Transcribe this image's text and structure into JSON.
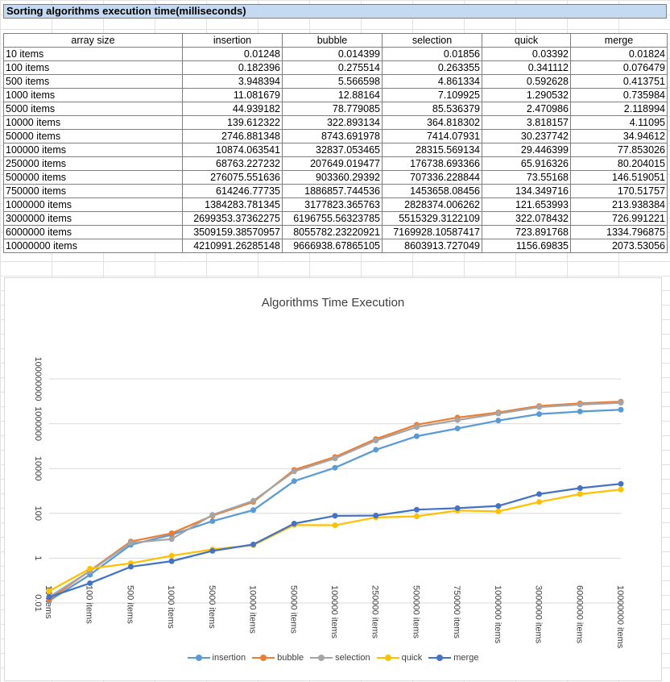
{
  "sheet": {
    "title": "Sorting algorithms execution time(milliseconds)"
  },
  "table": {
    "headers": [
      "array size",
      "insertion",
      "bubble",
      "selection",
      "quick",
      "merge"
    ],
    "rows": [
      [
        "10 items",
        "0.01248",
        "0.014399",
        "0.01856",
        "0.03392",
        "0.01824"
      ],
      [
        "100 items",
        "0.182396",
        "0.275514",
        "0.263355",
        "0.341112",
        "0.076479"
      ],
      [
        "500 items",
        "3.948394",
        "5.566598",
        "4.861334",
        "0.592628",
        "0.413751"
      ],
      [
        "1000 items",
        "11.081679",
        "12.88164",
        "7.109925",
        "1.290532",
        "0.735984"
      ],
      [
        "5000 items",
        "44.939182",
        "78.779085",
        "85.536379",
        "2.470986",
        "2.118994"
      ],
      [
        "10000 items",
        "139.612322",
        "322.893134",
        "364.818302",
        "3.818157",
        "4.11095"
      ],
      [
        "50000 items",
        "2746.881348",
        "8743.691978",
        "7414.07931",
        "30.237742",
        "34.94612"
      ],
      [
        "100000 items",
        "10874.063541",
        "32837.053465",
        "28315.569134",
        "29.446399",
        "77.853026"
      ],
      [
        "250000 items",
        "68763.227232",
        "207649.019477",
        "176738.693366",
        "65.916326",
        "80.204015"
      ],
      [
        "500000 items",
        "276075.551636",
        "903360.29392",
        "707336.228844",
        "73.55168",
        "146.519051"
      ],
      [
        "750000 items",
        "614246.77735",
        "1886857.744536",
        "1453658.08456",
        "134.349716",
        "170.51757"
      ],
      [
        "1000000 items",
        "1384283.781345",
        "3177823.365763",
        "2828374.006262",
        "121.653993",
        "213.938384"
      ],
      [
        "3000000 items",
        "2699353.37362275",
        "6196755.56323785",
        "5515329.3122109",
        "322.078432",
        "726.991221"
      ],
      [
        "6000000 items",
        "3509159.38570957",
        "8055782.23220921",
        "7169928.10587417",
        "723.891768",
        "1334.796875"
      ],
      [
        "10000000 items",
        "4210991.26285148",
        "9666938.67865105",
        "8603913.727049",
        "1156.69835",
        "2073.53056"
      ]
    ]
  },
  "chart_data": {
    "type": "line",
    "title": "Algorithms Time Execution",
    "xlabel": "",
    "ylabel": "",
    "y_scale": "log",
    "ylim": [
      0.01,
      100000000
    ],
    "y_ticks": [
      "0.01",
      "1",
      "100",
      "10000",
      "1000000",
      "100000000"
    ],
    "grid": true,
    "legend": "bottom",
    "categories": [
      "10 items",
      "100 items",
      "500 items",
      "1000 items",
      "5000 items",
      "10000 items",
      "50000 items",
      "100000 items",
      "250000 items",
      "500000 items",
      "750000 items",
      "1000000 items",
      "3000000 items",
      "6000000 items",
      "10000000 items"
    ],
    "series": [
      {
        "name": "insertion",
        "color": "#5b9bd5",
        "values": [
          0.01248,
          0.182396,
          3.948394,
          11.081679,
          44.939182,
          139.612322,
          2746.881348,
          10874.063541,
          68763.227232,
          276075.551636,
          614246.77735,
          1384283.781345,
          2699353.37362275,
          3509159.38570957,
          4210991.26285148
        ]
      },
      {
        "name": "bubble",
        "color": "#ed7d31",
        "values": [
          0.014399,
          0.275514,
          5.566598,
          12.88164,
          78.779085,
          322.893134,
          8743.691978,
          32837.053465,
          207649.019477,
          903360.29392,
          1886857.744536,
          3177823.365763,
          6196755.56323785,
          8055782.23220921,
          9666938.67865105
        ]
      },
      {
        "name": "selection",
        "color": "#a5a5a5",
        "values": [
          0.01856,
          0.263355,
          4.861334,
          7.109925,
          85.536379,
          364.818302,
          7414.07931,
          28315.569134,
          176738.693366,
          707336.228844,
          1453658.08456,
          2828374.006262,
          5515329.3122109,
          7169928.10587417,
          8603913.727049
        ]
      },
      {
        "name": "quick",
        "color": "#ffc000",
        "values": [
          0.03392,
          0.341112,
          0.592628,
          1.290532,
          2.470986,
          3.818157,
          30.237742,
          29.446399,
          65.916326,
          73.55168,
          134.349716,
          121.653993,
          322.078432,
          723.891768,
          1156.69835
        ]
      },
      {
        "name": "merge",
        "color": "#4472c4",
        "values": [
          0.01824,
          0.076479,
          0.413751,
          0.735984,
          2.118994,
          4.11095,
          34.94612,
          77.853026,
          80.204015,
          146.519051,
          170.51757,
          213.938384,
          726.991221,
          1334.796875,
          2073.53056
        ]
      }
    ]
  }
}
